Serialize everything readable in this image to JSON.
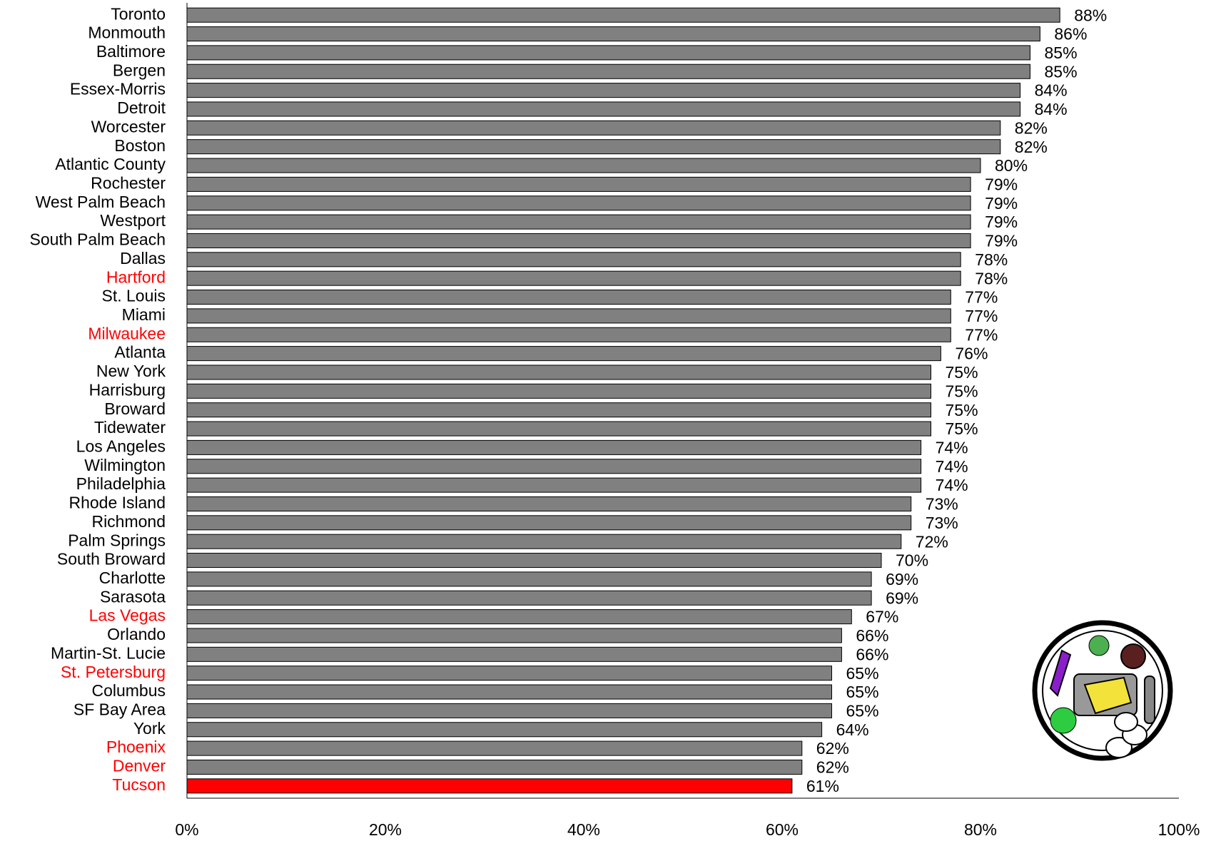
{
  "chart_data": {
    "type": "hbar",
    "categories": [
      "Toronto",
      "Monmouth",
      "Baltimore",
      "Bergen",
      "Essex-Morris",
      "Detroit",
      "Worcester",
      "Boston",
      "Atlantic County",
      "Rochester",
      "West Palm Beach",
      "Westport",
      "South Palm Beach",
      "Dallas",
      "Hartford",
      "St. Louis",
      "Miami",
      "Milwaukee",
      "Atlanta",
      "New York",
      "Harrisburg",
      "Broward",
      "Tidewater",
      "Los Angeles",
      "Wilmington",
      "Philadelphia",
      "Rhode Island",
      "Richmond",
      "Palm Springs",
      "South Broward",
      "Charlotte",
      "Sarasota",
      "Las Vegas",
      "Orlando",
      "Martin-St. Lucie",
      "St. Petersburg",
      "Columbus",
      "SF Bay Area",
      "York",
      "Phoenix",
      "Denver",
      "Tucson"
    ],
    "values": [
      88,
      86,
      85,
      85,
      84,
      84,
      82,
      82,
      80,
      79,
      79,
      79,
      79,
      78,
      78,
      77,
      77,
      77,
      76,
      75,
      75,
      75,
      75,
      74,
      74,
      74,
      73,
      73,
      72,
      70,
      69,
      69,
      67,
      66,
      66,
      65,
      65,
      65,
      64,
      62,
      62,
      61
    ],
    "value_labels": [
      "88%",
      "86%",
      "85%",
      "85%",
      "84%",
      "84%",
      "82%",
      "82%",
      "80%",
      "79%",
      "79%",
      "79%",
      "79%",
      "78%",
      "78%",
      "77%",
      "77%",
      "77%",
      "76%",
      "75%",
      "75%",
      "75%",
      "75%",
      "74%",
      "74%",
      "74%",
      "73%",
      "73%",
      "72%",
      "70%",
      "69%",
      "69%",
      "67%",
      "66%",
      "66%",
      "65%",
      "65%",
      "65%",
      "64%",
      "62%",
      "62%",
      "61%"
    ],
    "colors": [
      "#808080",
      "#808080",
      "#808080",
      "#808080",
      "#808080",
      "#808080",
      "#808080",
      "#808080",
      "#808080",
      "#808080",
      "#808080",
      "#808080",
      "#808080",
      "#808080",
      "#808080",
      "#808080",
      "#808080",
      "#808080",
      "#808080",
      "#808080",
      "#808080",
      "#808080",
      "#808080",
      "#808080",
      "#808080",
      "#808080",
      "#808080",
      "#808080",
      "#808080",
      "#808080",
      "#808080",
      "#808080",
      "#808080",
      "#808080",
      "#808080",
      "#808080",
      "#808080",
      "#808080",
      "#808080",
      "#808080",
      "#808080",
      "#ff0000"
    ],
    "label_colors": [
      "#000000",
      "#000000",
      "#000000",
      "#000000",
      "#000000",
      "#000000",
      "#000000",
      "#000000",
      "#000000",
      "#000000",
      "#000000",
      "#000000",
      "#000000",
      "#000000",
      "#ff0000",
      "#000000",
      "#000000",
      "#ff0000",
      "#000000",
      "#000000",
      "#000000",
      "#000000",
      "#000000",
      "#000000",
      "#000000",
      "#000000",
      "#000000",
      "#000000",
      "#000000",
      "#000000",
      "#000000",
      "#000000",
      "#ff0000",
      "#000000",
      "#000000",
      "#ff0000",
      "#000000",
      "#000000",
      "#000000",
      "#ff0000",
      "#ff0000",
      "#ff0000"
    ],
    "xlim": [
      0,
      100
    ],
    "xticks": [
      {
        "value": 0,
        "label": "0%"
      },
      {
        "value": 20,
        "label": "20%"
      },
      {
        "value": 40,
        "label": "40%"
      },
      {
        "value": 60,
        "label": "60%"
      },
      {
        "value": 80,
        "label": "80%"
      },
      {
        "value": 100,
        "label": "100%"
      }
    ],
    "grid": false
  }
}
